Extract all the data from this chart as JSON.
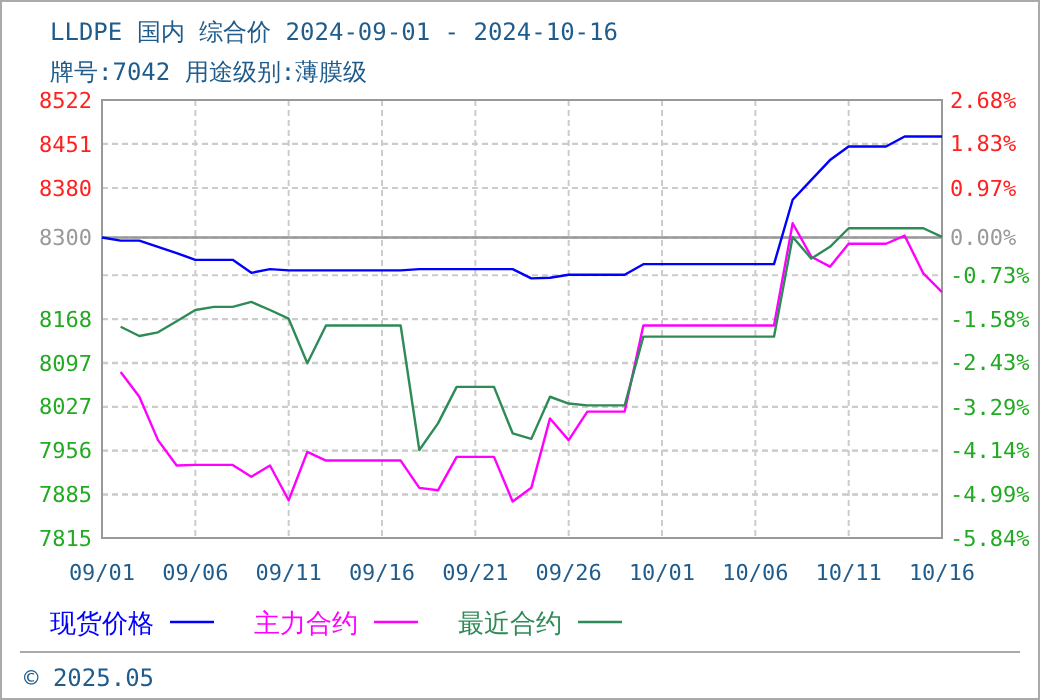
{
  "chart_data": {
    "type": "line",
    "title": "LLDPE 国内 综合价 2024-09-01 - 2024-10-16",
    "subtitle": "牌号:7042 用途级别:薄膜级",
    "x": [
      "2024-09-01",
      "2024-09-02",
      "2024-09-03",
      "2024-09-04",
      "2024-09-05",
      "2024-09-06",
      "2024-09-07",
      "2024-09-08",
      "2024-09-09",
      "2024-09-10",
      "2024-09-11",
      "2024-09-12",
      "2024-09-13",
      "2024-09-14",
      "2024-09-15",
      "2024-09-16",
      "2024-09-17",
      "2024-09-18",
      "2024-09-19",
      "2024-09-20",
      "2024-09-21",
      "2024-09-22",
      "2024-09-23",
      "2024-09-24",
      "2024-09-25",
      "2024-09-26",
      "2024-09-27",
      "2024-09-28",
      "2024-09-29",
      "2024-09-30",
      "2024-10-01",
      "2024-10-02",
      "2024-10-03",
      "2024-10-04",
      "2024-10-05",
      "2024-10-06",
      "2024-10-07",
      "2024-10-08",
      "2024-10-09",
      "2024-10-10",
      "2024-10-11",
      "2024-10-12",
      "2024-10-13",
      "2024-10-14",
      "2024-10-15",
      "2024-10-16"
    ],
    "series": [
      {
        "name": "现货价格",
        "color": "#0000ff",
        "values": [
          8300,
          8295,
          8295,
          8285,
          8275,
          8264,
          8264,
          8264,
          8243,
          8249,
          8247,
          8247,
          8247,
          8247,
          8247,
          8247,
          8247,
          8249,
          8249,
          8249,
          8249,
          8249,
          8249,
          8234,
          8235,
          8240,
          8240,
          8240,
          8240,
          8257,
          8257,
          8257,
          8257,
          8257,
          8257,
          8257,
          8257,
          8361,
          8393,
          8425,
          8447,
          8447,
          8447,
          8463,
          8463,
          8463
        ]
      },
      {
        "name": "主力合约",
        "color": "#ff00ff",
        "values": [
          null,
          8083,
          8043,
          7973,
          7932,
          7933,
          7933,
          7933,
          7914,
          7932,
          7876,
          7954,
          7940,
          7940,
          7940,
          7940,
          7940,
          7896,
          7892,
          7946,
          7946,
          7946,
          7874,
          7896,
          8008,
          7973,
          8019,
          8019,
          8019,
          8158,
          8158,
          8158,
          8158,
          8158,
          8158,
          8158,
          8158,
          8323,
          8269,
          8253,
          8290,
          8290,
          8290,
          8303,
          8242,
          8212
        ]
      },
      {
        "name": "最近合约",
        "color": "#2e8b57",
        "values": [
          null,
          8156,
          8141,
          8147,
          8165,
          8183,
          8188,
          8188,
          8196,
          8183,
          8169,
          8097,
          8158,
          8158,
          8158,
          8158,
          8158,
          7957,
          8000,
          8059,
          8059,
          8059,
          7984,
          7975,
          8043,
          8032,
          8029,
          8029,
          8029,
          8140,
          8140,
          8140,
          8140,
          8140,
          8140,
          8140,
          8140,
          8301,
          8266,
          8285,
          8315,
          8315,
          8315,
          8315,
          8315,
          8301
        ]
      }
    ],
    "xlim": [
      "2024-09-01",
      "2024-10-16"
    ],
    "xticks": [
      {
        "value": "2024-09-01",
        "label": "09/01"
      },
      {
        "value": "2024-09-06",
        "label": "09/06"
      },
      {
        "value": "2024-09-11",
        "label": "09/11"
      },
      {
        "value": "2024-09-16",
        "label": "09/16"
      },
      {
        "value": "2024-09-21",
        "label": "09/21"
      },
      {
        "value": "2024-09-26",
        "label": "09/26"
      },
      {
        "value": "2024-10-01",
        "label": "10/01"
      },
      {
        "value": "2024-10-06",
        "label": "10/06"
      },
      {
        "value": "2024-10-11",
        "label": "10/11"
      },
      {
        "value": "2024-10-16",
        "label": "10/16"
      }
    ],
    "ylim": [
      7815,
      8522
    ],
    "yticks": [
      8522,
      8451,
      8380,
      8300,
      8168,
      8097,
      8027,
      7956,
      7885,
      7815
    ],
    "y2lim": [
      -5.84,
      2.68
    ],
    "y2ticks": [
      {
        "value": 2.68,
        "label": "2.68%"
      },
      {
        "value": 1.83,
        "label": "1.83%"
      },
      {
        "value": 0.97,
        "label": "0.97%"
      },
      {
        "value": 0,
        "label": "0.00%"
      },
      {
        "value": -0.73,
        "label": "-0.73%"
      },
      {
        "value": -1.58,
        "label": "-1.58%"
      },
      {
        "value": -2.43,
        "label": "-2.43%"
      },
      {
        "value": -3.29,
        "label": "-3.29%"
      },
      {
        "value": -4.14,
        "label": "-4.14%"
      },
      {
        "value": -4.99,
        "label": "-4.99%"
      },
      {
        "value": -5.84,
        "label": "-5.84%"
      }
    ],
    "ref_lines": [
      {
        "axis": "y",
        "value": 8300,
        "color": "#999999"
      }
    ],
    "grid": true,
    "legend": "bottom",
    "line_style": "solid",
    "marker": "none",
    "annotations": [
      "© 2025.05"
    ]
  }
}
